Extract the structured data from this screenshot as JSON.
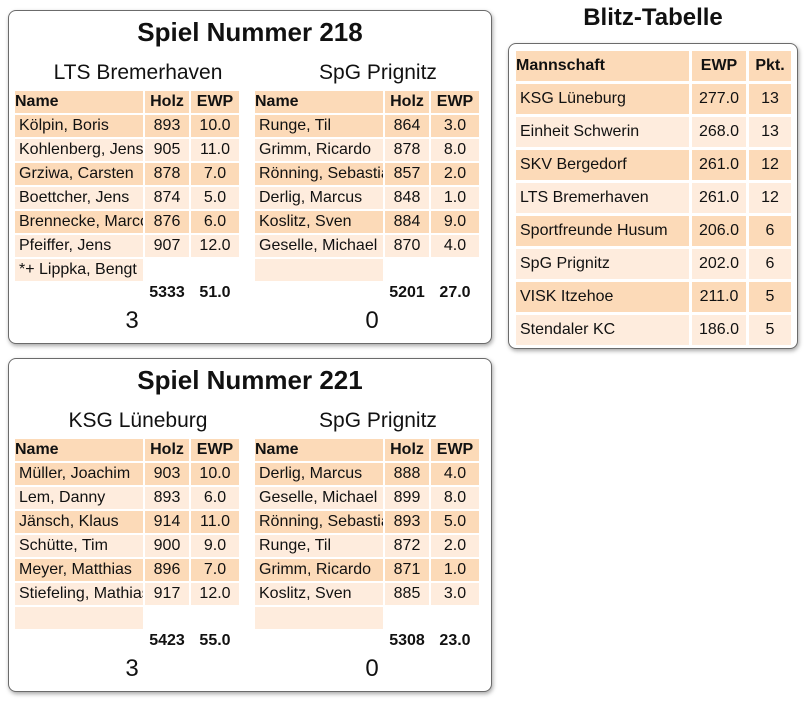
{
  "games": [
    {
      "title": "Spiel Nummer 218",
      "columns": {
        "name": "Name",
        "holz": "Holz",
        "ewp": "EWP"
      },
      "home": {
        "team": "LTS Bremerhaven",
        "players": [
          {
            "name": "Kölpin, Boris",
            "holz": "893",
            "ewp": "10.0"
          },
          {
            "name": "Kohlenberg, Jens",
            "holz": "905",
            "ewp": "11.0"
          },
          {
            "name": "Grziwa, Carsten",
            "holz": "878",
            "ewp": "7.0"
          },
          {
            "name": "Boettcher, Jens",
            "holz": "874",
            "ewp": "5.0"
          },
          {
            "name": "Brennecke, Marco",
            "holz": "876",
            "ewp": "6.0"
          },
          {
            "name": "Pfeiffer, Jens",
            "holz": "907",
            "ewp": "12.0"
          }
        ],
        "note": "*+ Lippka, Bengt",
        "total_holz": "5333",
        "total_ewp": "51.0",
        "score": "3"
      },
      "away": {
        "team": "SpG Prignitz",
        "players": [
          {
            "name": "Runge, Til",
            "holz": "864",
            "ewp": "3.0"
          },
          {
            "name": "Grimm, Ricardo",
            "holz": "878",
            "ewp": "8.0"
          },
          {
            "name": "Rönning, Sebastian",
            "holz": "857",
            "ewp": "2.0"
          },
          {
            "name": "Derlig, Marcus",
            "holz": "848",
            "ewp": "1.0"
          },
          {
            "name": "Koslitz, Sven",
            "holz": "884",
            "ewp": "9.0"
          },
          {
            "name": "Geselle, Michael",
            "holz": "870",
            "ewp": "4.0"
          }
        ],
        "note": "",
        "total_holz": "5201",
        "total_ewp": "27.0",
        "score": "0"
      }
    },
    {
      "title": "Spiel Nummer 221",
      "columns": {
        "name": "Name",
        "holz": "Holz",
        "ewp": "EWP"
      },
      "home": {
        "team": "KSG Lüneburg",
        "players": [
          {
            "name": "Müller, Joachim",
            "holz": "903",
            "ewp": "10.0"
          },
          {
            "name": "Lem, Danny",
            "holz": "893",
            "ewp": "6.0"
          },
          {
            "name": "Jänsch, Klaus",
            "holz": "914",
            "ewp": "11.0"
          },
          {
            "name": "Schütte, Tim",
            "holz": "900",
            "ewp": "9.0"
          },
          {
            "name": "Meyer, Matthias",
            "holz": "896",
            "ewp": "7.0"
          },
          {
            "name": "Stiefeling, Mathias",
            "holz": "917",
            "ewp": "12.0"
          }
        ],
        "note": "",
        "total_holz": "5423",
        "total_ewp": "55.0",
        "score": "3"
      },
      "away": {
        "team": "SpG Prignitz",
        "players": [
          {
            "name": "Derlig, Marcus",
            "holz": "888",
            "ewp": "4.0"
          },
          {
            "name": "Geselle, Michael",
            "holz": "899",
            "ewp": "8.0"
          },
          {
            "name": "Rönning, Sebastian",
            "holz": "893",
            "ewp": "5.0"
          },
          {
            "name": "Runge, Til",
            "holz": "872",
            "ewp": "2.0"
          },
          {
            "name": "Grimm, Ricardo",
            "holz": "871",
            "ewp": "1.0"
          },
          {
            "name": "Koslitz, Sven",
            "holz": "885",
            "ewp": "3.0"
          }
        ],
        "note": "",
        "total_holz": "5308",
        "total_ewp": "23.0",
        "score": "0"
      }
    }
  ],
  "standings": {
    "title": "Blitz-Tabelle",
    "columns": {
      "team": "Mannschaft",
      "ewp": "EWP",
      "pts": "Pkt."
    },
    "rows": [
      {
        "team": "KSG Lüneburg",
        "ewp": "277.0",
        "pts": "13"
      },
      {
        "team": "Einheit Schwerin",
        "ewp": "268.0",
        "pts": "13"
      },
      {
        "team": "SKV Bergedorf",
        "ewp": "261.0",
        "pts": "12"
      },
      {
        "team": "LTS Bremerhaven",
        "ewp": "261.0",
        "pts": "12"
      },
      {
        "team": "Sportfreunde Husum",
        "ewp": "206.0",
        "pts": "6"
      },
      {
        "team": "SpG Prignitz",
        "ewp": "202.0",
        "pts": "6"
      },
      {
        "team": "VISK Itzehoe",
        "ewp": "211.0",
        "pts": "5"
      },
      {
        "team": "Stendaler KC",
        "ewp": "186.0",
        "pts": "5"
      }
    ]
  }
}
